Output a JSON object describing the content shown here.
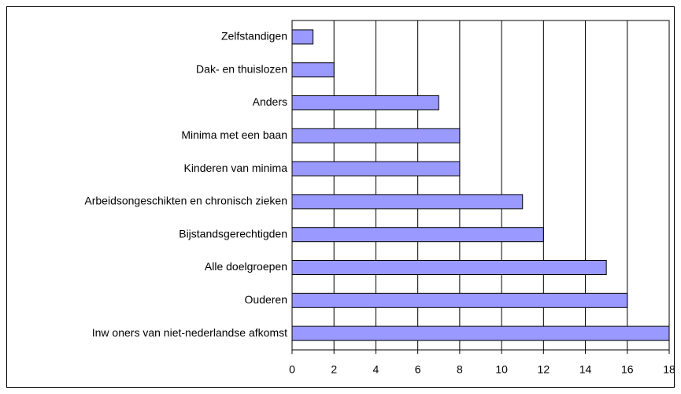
{
  "chart_data": {
    "type": "barh",
    "categories": [
      "Zelfstandigen",
      "Dak- en thuislozen",
      "Anders",
      "Minima met een baan",
      "Kinderen van minima",
      "Arbeidsongeschikten en chronisch zieken",
      "Bijstandsgerechtigden",
      "Alle doelgroepen",
      "Ouderen",
      "Inw oners van niet-nederlandse afkomst"
    ],
    "values": [
      1,
      2,
      7,
      8,
      8,
      11,
      12,
      15,
      16,
      18
    ],
    "color": "#9999ff",
    "xlim": [
      0,
      18
    ],
    "xticks": [
      0,
      2,
      4,
      6,
      8,
      10,
      12,
      14,
      16,
      18
    ],
    "grid": true
  }
}
